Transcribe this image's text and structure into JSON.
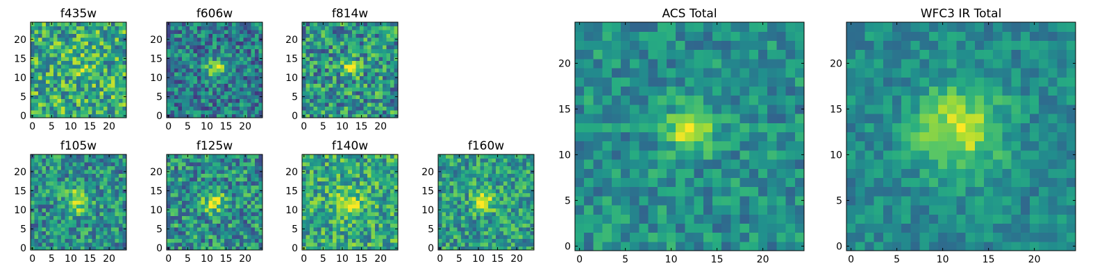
{
  "chart_data": [
    {
      "type": "heatmap",
      "title": "f435w",
      "grid_size": 25,
      "xticks": [
        "0",
        "5",
        "10",
        "15",
        "20"
      ],
      "yticks": [
        "0",
        "5",
        "10",
        "15",
        "20"
      ],
      "xlim": [
        -0.5,
        24.5
      ],
      "ylim": [
        -0.5,
        24.5
      ],
      "source": {
        "cx": 13,
        "cy": 14,
        "sigma": 2.5,
        "amp": 0.12,
        "base": 0.62,
        "noise": 0.3,
        "seed": 11
      }
    },
    {
      "type": "heatmap",
      "title": "f606w",
      "grid_size": 25,
      "xticks": [
        "0",
        "5",
        "10",
        "15",
        "20"
      ],
      "yticks": [
        "0",
        "5",
        "10",
        "15",
        "20"
      ],
      "xlim": [
        -0.5,
        24.5
      ],
      "ylim": [
        -0.5,
        24.5
      ],
      "source": {
        "cx": 12.5,
        "cy": 12.5,
        "sigma": 1.6,
        "amp": 0.55,
        "base": 0.42,
        "noise": 0.26,
        "seed": 23
      }
    },
    {
      "type": "heatmap",
      "title": "f814w",
      "grid_size": 25,
      "xticks": [
        "0",
        "5",
        "10",
        "15",
        "20"
      ],
      "yticks": [
        "0",
        "5",
        "10",
        "15",
        "20"
      ],
      "xlim": [
        -0.5,
        24.5
      ],
      "ylim": [
        -0.5,
        24.5
      ],
      "source": {
        "cx": 12.5,
        "cy": 12.5,
        "sigma": 1.5,
        "amp": 0.4,
        "base": 0.52,
        "noise": 0.3,
        "seed": 37
      }
    },
    {
      "type": "heatmap",
      "title": "f105w",
      "grid_size": 25,
      "xticks": [
        "0",
        "5",
        "10",
        "15",
        "20"
      ],
      "yticks": [
        "0",
        "5",
        "10",
        "15",
        "20"
      ],
      "xlim": [
        -0.5,
        24.5
      ],
      "ylim": [
        -0.5,
        24.5
      ],
      "source": {
        "cx": 12,
        "cy": 12.5,
        "sigma": 2.2,
        "amp": 0.4,
        "base": 0.5,
        "noise": 0.26,
        "seed": 41
      }
    },
    {
      "type": "heatmap",
      "title": "f125w",
      "grid_size": 25,
      "xticks": [
        "0",
        "5",
        "10",
        "15",
        "20"
      ],
      "yticks": [
        "0",
        "5",
        "10",
        "15",
        "20"
      ],
      "xlim": [
        -0.5,
        24.5
      ],
      "ylim": [
        -0.5,
        24.5
      ],
      "source": {
        "cx": 12,
        "cy": 12,
        "sigma": 2.0,
        "amp": 0.35,
        "base": 0.5,
        "noise": 0.28,
        "seed": 53
      }
    },
    {
      "type": "heatmap",
      "title": "f140w",
      "grid_size": 25,
      "xticks": [
        "0",
        "5",
        "10",
        "15",
        "20"
      ],
      "yticks": [
        "0",
        "5",
        "10",
        "15",
        "20"
      ],
      "xlim": [
        -0.5,
        24.5
      ],
      "ylim": [
        -0.5,
        24.5
      ],
      "source": {
        "cx": 12,
        "cy": 12,
        "sigma": 2.4,
        "amp": 0.28,
        "base": 0.6,
        "noise": 0.26,
        "seed": 67
      }
    },
    {
      "type": "heatmap",
      "title": "f160w",
      "grid_size": 25,
      "xticks": [
        "0",
        "5",
        "10",
        "15",
        "20"
      ],
      "yticks": [
        "0",
        "5",
        "10",
        "15",
        "20"
      ],
      "xlim": [
        -0.5,
        24.5
      ],
      "ylim": [
        -0.5,
        24.5
      ],
      "source": {
        "cx": 11.5,
        "cy": 12.5,
        "sigma": 2.0,
        "amp": 0.45,
        "base": 0.55,
        "noise": 0.24,
        "seed": 79
      }
    },
    {
      "type": "heatmap",
      "title": "ACS Total",
      "grid_size": 25,
      "xticks": [
        "0",
        "5",
        "10",
        "15",
        "20"
      ],
      "yticks": [
        "0",
        "5",
        "10",
        "15",
        "20"
      ],
      "xlim": [
        -0.5,
        24.5
      ],
      "ylim": [
        -0.5,
        24.5
      ],
      "source": {
        "cx": 12,
        "cy": 12.8,
        "sigma": 1.6,
        "amp": 0.5,
        "base": 0.5,
        "noise": 0.18,
        "seed": 91
      }
    },
    {
      "type": "heatmap",
      "title": "WFC3 IR Total",
      "grid_size": 25,
      "xticks": [
        "0",
        "5",
        "10",
        "15",
        "20"
      ],
      "yticks": [
        "0",
        "5",
        "10",
        "15",
        "20"
      ],
      "xlim": [
        -0.5,
        24.5
      ],
      "ylim": [
        -0.5,
        24.5
      ],
      "source": {
        "cx": 11.8,
        "cy": 12.8,
        "sigma": 3.2,
        "amp": 0.45,
        "base": 0.48,
        "noise": 0.14,
        "seed": 103
      }
    }
  ],
  "colormap": [
    "#440154",
    "#472c7a",
    "#3b518b",
    "#2c718e",
    "#21908d",
    "#27ad81",
    "#5cc863",
    "#aadc32",
    "#fde725"
  ]
}
